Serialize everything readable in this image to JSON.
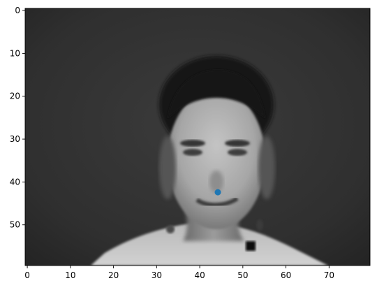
{
  "chart_data": {
    "type": "heatmap",
    "title": "",
    "xlabel": "",
    "ylabel": "",
    "colormap": "gray",
    "image_size": {
      "cols": 80,
      "rows": 60
    },
    "xlim": [
      -0.5,
      79.5
    ],
    "ylim": [
      59.5,
      -0.5
    ],
    "x_ticks": [
      0,
      10,
      20,
      30,
      40,
      50,
      60,
      70
    ],
    "x_tick_labels": [
      "0",
      "10",
      "20",
      "30",
      "40",
      "50",
      "60",
      "70"
    ],
    "y_ticks": [
      0,
      10,
      20,
      30,
      40,
      50
    ],
    "y_tick_labels": [
      "0",
      "10",
      "20",
      "30",
      "40",
      "50"
    ],
    "grid": false,
    "legend": "none",
    "point_color": "#1f77b4",
    "points": [
      {
        "x": 44.2,
        "y": 42.4
      }
    ],
    "image_regions": {
      "background_intensity": 0.2,
      "hair_intensity": 0.17,
      "face_intensity": 0.7,
      "shoulders_intensity": 0.78
    }
  }
}
